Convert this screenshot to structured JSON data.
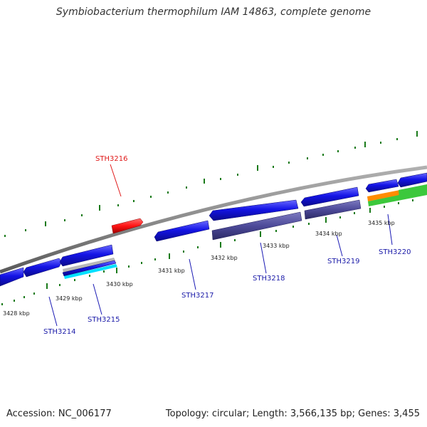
{
  "title": "Symbiobacterium thermophilum IAM 14863, complete genome",
  "footer": {
    "accession": "Accession: NC_006177",
    "summary": "Topology: circular; Length: 3,566,135 bp; Genes: 3,455"
  },
  "scale_labels": [
    "3428 kbp",
    "3429 kbp",
    "3430 kbp",
    "3431 kbp",
    "3432 kbp",
    "3433 kbp",
    "3434 kbp",
    "3435 kbp"
  ],
  "genes": [
    {
      "id": "STH3214",
      "color": "#1a1ab4"
    },
    {
      "id": "STH3215",
      "color": "#1a1ab4"
    },
    {
      "id": "STH3216",
      "color": "#e01a1a"
    },
    {
      "id": "STH3217",
      "color": "#1a1ab4"
    },
    {
      "id": "STH3218",
      "color": "#1a1ab4"
    },
    {
      "id": "STH3219",
      "color": "#1a1ab4"
    },
    {
      "id": "STH3220",
      "color": "#1a1ab4"
    }
  ],
  "colors": {
    "backbone": "#8c8c8c",
    "cds_forward": "#1414e6",
    "cds_reverse_alt": "#4d4a99",
    "highlight": "#ff1414",
    "ticks": "#1a7a1a",
    "feature_cyan": "#00e0ff",
    "feature_orange": "#ff8c00",
    "feature_green": "#3cc83c"
  }
}
